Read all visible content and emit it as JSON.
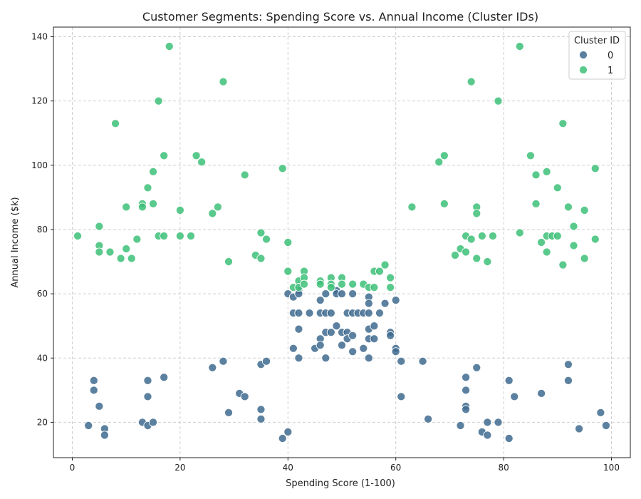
{
  "chart_data": {
    "type": "scatter",
    "title": "Customer Segments: Spending Score vs. Annual Income (Cluster IDs)",
    "xlabel": "Spending Score (1-100)",
    "ylabel": "Annual Income ($k)",
    "xlim": [
      -3.5,
      103.5
    ],
    "ylim": [
      9,
      143
    ],
    "xticks": [
      0,
      20,
      40,
      60,
      80,
      100
    ],
    "yticks": [
      20,
      40,
      60,
      80,
      100,
      120,
      140
    ],
    "grid": true,
    "legend": {
      "title": "Cluster ID",
      "placement": "top-right",
      "entries": [
        "0",
        "1"
      ]
    },
    "colors": {
      "0": "#3f6b8f",
      "1": "#3dbf78",
      "grid": "#cfcfcf",
      "axis": "#222222"
    },
    "series": [
      {
        "name": "0",
        "points": [
          [
            3,
            19
          ],
          [
            4,
            33
          ],
          [
            4,
            30
          ],
          [
            5,
            25
          ],
          [
            6,
            18
          ],
          [
            6,
            16
          ],
          [
            13,
            20
          ],
          [
            14,
            19
          ],
          [
            14,
            33
          ],
          [
            14,
            28
          ],
          [
            15,
            20
          ],
          [
            17,
            34
          ],
          [
            26,
            37
          ],
          [
            28,
            39
          ],
          [
            29,
            23
          ],
          [
            31,
            29
          ],
          [
            32,
            28
          ],
          [
            35,
            38
          ],
          [
            35,
            24
          ],
          [
            35,
            21
          ],
          [
            36,
            39
          ],
          [
            39,
            15
          ],
          [
            40,
            17
          ],
          [
            40,
            60
          ],
          [
            41,
            59
          ],
          [
            41,
            54
          ],
          [
            41,
            43
          ],
          [
            42,
            61
          ],
          [
            42,
            60
          ],
          [
            42,
            54
          ],
          [
            42,
            49
          ],
          [
            42,
            40
          ],
          [
            44,
            54
          ],
          [
            45,
            43
          ],
          [
            46,
            58
          ],
          [
            46,
            54
          ],
          [
            46,
            46
          ],
          [
            46,
            44
          ],
          [
            47,
            60
          ],
          [
            47,
            54
          ],
          [
            47,
            48
          ],
          [
            47,
            40
          ],
          [
            48,
            54
          ],
          [
            48,
            48
          ],
          [
            49,
            61
          ],
          [
            49,
            60
          ],
          [
            49,
            50
          ],
          [
            50,
            60
          ],
          [
            50,
            48
          ],
          [
            50,
            44
          ],
          [
            51,
            54
          ],
          [
            51,
            48
          ],
          [
            51,
            46
          ],
          [
            52,
            60
          ],
          [
            52,
            54
          ],
          [
            52,
            47
          ],
          [
            52,
            42
          ],
          [
            53,
            54
          ],
          [
            54,
            54
          ],
          [
            54,
            43
          ],
          [
            55,
            59
          ],
          [
            55,
            57
          ],
          [
            55,
            54
          ],
          [
            55,
            49
          ],
          [
            55,
            46
          ],
          [
            55,
            40
          ],
          [
            56,
            50
          ],
          [
            56,
            46
          ],
          [
            57,
            54
          ],
          [
            58,
            57
          ],
          [
            59,
            48
          ],
          [
            59,
            47
          ],
          [
            60,
            58
          ],
          [
            60,
            43
          ],
          [
            60,
            42
          ],
          [
            61,
            39
          ],
          [
            61,
            28
          ],
          [
            65,
            39
          ],
          [
            66,
            21
          ],
          [
            72,
            19
          ],
          [
            73,
            34
          ],
          [
            73,
            30
          ],
          [
            73,
            25
          ],
          [
            73,
            24
          ],
          [
            75,
            37
          ],
          [
            76,
            17
          ],
          [
            77,
            20
          ],
          [
            77,
            16
          ],
          [
            79,
            20
          ],
          [
            81,
            33
          ],
          [
            81,
            15
          ],
          [
            82,
            28
          ],
          [
            87,
            29
          ],
          [
            92,
            38
          ],
          [
            92,
            33
          ],
          [
            94,
            18
          ],
          [
            98,
            23
          ],
          [
            99,
            19
          ]
        ]
      },
      {
        "name": "1",
        "points": [
          [
            1,
            78
          ],
          [
            5,
            81
          ],
          [
            5,
            75
          ],
          [
            5,
            73
          ],
          [
            7,
            73
          ],
          [
            8,
            113
          ],
          [
            9,
            71
          ],
          [
            10,
            87
          ],
          [
            10,
            74
          ],
          [
            11,
            71
          ],
          [
            12,
            77
          ],
          [
            13,
            88
          ],
          [
            13,
            87
          ],
          [
            14,
            93
          ],
          [
            15,
            98
          ],
          [
            15,
            88
          ],
          [
            16,
            120
          ],
          [
            16,
            78
          ],
          [
            17,
            103
          ],
          [
            17,
            78
          ],
          [
            18,
            137
          ],
          [
            20,
            86
          ],
          [
            20,
            78
          ],
          [
            22,
            78
          ],
          [
            23,
            103
          ],
          [
            24,
            101
          ],
          [
            26,
            85
          ],
          [
            27,
            87
          ],
          [
            28,
            126
          ],
          [
            29,
            70
          ],
          [
            32,
            97
          ],
          [
            34,
            72
          ],
          [
            35,
            79
          ],
          [
            35,
            71
          ],
          [
            36,
            77
          ],
          [
            39,
            99
          ],
          [
            40,
            76
          ],
          [
            40,
            67
          ],
          [
            41,
            62
          ],
          [
            42,
            64
          ],
          [
            42,
            62
          ],
          [
            43,
            67
          ],
          [
            43,
            65
          ],
          [
            43,
            63
          ],
          [
            46,
            64
          ],
          [
            46,
            63
          ],
          [
            48,
            65
          ],
          [
            48,
            63
          ],
          [
            48,
            62
          ],
          [
            50,
            65
          ],
          [
            50,
            63
          ],
          [
            52,
            63
          ],
          [
            54,
            63
          ],
          [
            55,
            62
          ],
          [
            56,
            67
          ],
          [
            56,
            62
          ],
          [
            57,
            67
          ],
          [
            58,
            69
          ],
          [
            59,
            65
          ],
          [
            59,
            62
          ],
          [
            63,
            87
          ],
          [
            68,
            101
          ],
          [
            69,
            103
          ],
          [
            69,
            88
          ],
          [
            71,
            72
          ],
          [
            72,
            74
          ],
          [
            73,
            78
          ],
          [
            73,
            73
          ],
          [
            74,
            126
          ],
          [
            74,
            77
          ],
          [
            75,
            87
          ],
          [
            75,
            85
          ],
          [
            75,
            71
          ],
          [
            76,
            78
          ],
          [
            77,
            70
          ],
          [
            78,
            78
          ],
          [
            79,
            120
          ],
          [
            83,
            137
          ],
          [
            83,
            79
          ],
          [
            85,
            103
          ],
          [
            86,
            97
          ],
          [
            86,
            88
          ],
          [
            87,
            76
          ],
          [
            88,
            98
          ],
          [
            88,
            78
          ],
          [
            88,
            73
          ],
          [
            89,
            78
          ],
          [
            90,
            93
          ],
          [
            90,
            78
          ],
          [
            91,
            113
          ],
          [
            91,
            69
          ],
          [
            92,
            87
          ],
          [
            93,
            81
          ],
          [
            93,
            75
          ],
          [
            95,
            86
          ],
          [
            95,
            71
          ],
          [
            97,
            99
          ],
          [
            97,
            77
          ]
        ]
      }
    ]
  }
}
